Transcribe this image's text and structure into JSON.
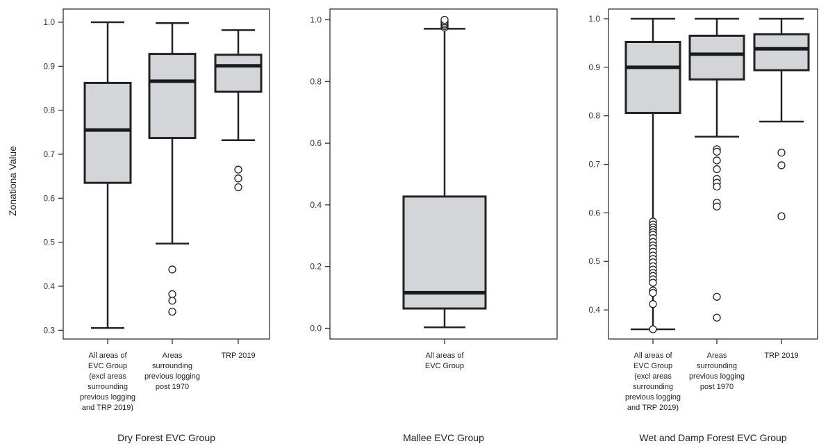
{
  "chart_data": [
    {
      "type": "box",
      "title": "Dry Forest EVC Group",
      "ylabel": "Zonationa Value",
      "ylim": [
        0.28,
        1.03
      ],
      "yticks": [
        0.3,
        0.4,
        0.5,
        0.6,
        0.7,
        0.8,
        0.9,
        1.0
      ],
      "ytick_labels": [
        "0.3",
        "0.4",
        "0.5",
        "0.6",
        "0.7",
        "0.8",
        "0.9",
        "1.0"
      ],
      "categories": [
        [
          "All areas of",
          "EVC Group",
          "(excl areas",
          "surrounding",
          "previous logging",
          "and TRP 2019)"
        ],
        [
          "Areas",
          "surrounding",
          "previous logging",
          "post 1970"
        ],
        [
          "TRP 2019"
        ]
      ],
      "boxes": [
        {
          "whisker_low": 0.305,
          "q1": 0.635,
          "median": 0.755,
          "q3": 0.862,
          "whisker_high": 1.0,
          "outliers": []
        },
        {
          "whisker_low": 0.497,
          "q1": 0.737,
          "median": 0.866,
          "q3": 0.928,
          "whisker_high": 0.998,
          "outliers": [
            0.438,
            0.382,
            0.367,
            0.342
          ]
        },
        {
          "whisker_low": 0.732,
          "q1": 0.842,
          "median": 0.901,
          "q3": 0.926,
          "whisker_high": 0.982,
          "outliers": [
            0.665,
            0.645,
            0.625
          ]
        }
      ],
      "box_fill": "#d3d5d8"
    },
    {
      "type": "box",
      "title": "Mallee EVC Group",
      "ylabel": "",
      "ylim": [
        -0.035,
        1.035
      ],
      "yticks": [
        0.0,
        0.2,
        0.4,
        0.6,
        0.8,
        1.0
      ],
      "ytick_labels": [
        "0.0",
        "0.2",
        "0.4",
        "0.6",
        "0.8",
        "1.0"
      ],
      "categories": [
        [
          "All areas of",
          "EVC Group"
        ]
      ],
      "boxes": [
        {
          "whisker_low": 0.003,
          "q1": 0.064,
          "median": 0.115,
          "q3": 0.427,
          "whisker_high": 0.971,
          "outliers": [
            0.975,
            0.98,
            0.985,
            0.99,
            0.995,
            1.0
          ]
        }
      ],
      "box_fill": "#d3d5d8"
    },
    {
      "type": "box",
      "title": "Wet and Damp Forest EVC Group",
      "ylabel": "",
      "ylim": [
        0.34,
        1.02
      ],
      "yticks": [
        0.4,
        0.5,
        0.6,
        0.7,
        0.8,
        0.9,
        1.0
      ],
      "ytick_labels": [
        "0.4",
        "0.5",
        "0.6",
        "0.7",
        "0.8",
        "0.9",
        "1.0"
      ],
      "categories": [
        [
          "All areas of",
          "EVC Group",
          "(excl areas",
          "surrounding",
          "previous logging",
          "and TRP 2019)"
        ],
        [
          "Areas",
          "surrounding",
          "previous logging",
          "post 1970"
        ],
        [
          "TRP 2019"
        ]
      ],
      "boxes": [
        {
          "whisker_low": 0.36,
          "q1": 0.806,
          "median": 0.9,
          "q3": 0.952,
          "whisker_high": 1.0,
          "outliers": [
            0.582,
            0.576,
            0.57,
            0.565,
            0.56,
            0.555,
            0.548,
            0.54,
            0.533,
            0.527,
            0.52,
            0.512,
            0.505,
            0.498,
            0.49,
            0.483,
            0.476,
            0.47,
            0.463,
            0.456,
            0.44,
            0.435,
            0.412,
            0.36
          ]
        },
        {
          "whisker_low": 0.757,
          "q1": 0.875,
          "median": 0.927,
          "q3": 0.965,
          "whisker_high": 1.0,
          "outliers": [
            0.731,
            0.726,
            0.708,
            0.69,
            0.67,
            0.662,
            0.654,
            0.621,
            0.613,
            0.427,
            0.384
          ]
        },
        {
          "whisker_low": 0.788,
          "q1": 0.894,
          "median": 0.938,
          "q3": 0.968,
          "whisker_high": 1.0,
          "outliers": [
            0.724,
            0.698,
            0.593
          ]
        }
      ],
      "box_fill": "#d3d5d8"
    }
  ]
}
